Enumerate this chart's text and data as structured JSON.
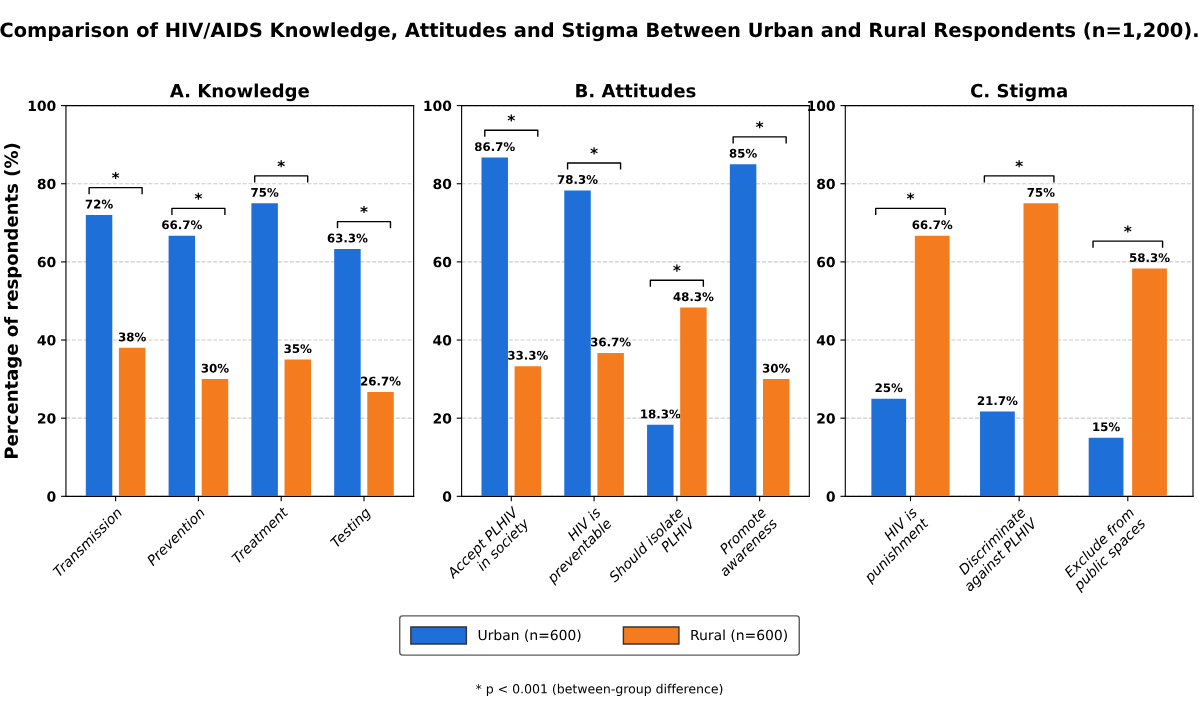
{
  "chart_data": [
    {
      "type": "bar",
      "title": "A. Knowledge",
      "ylabel": "Percentage of respondents (%)",
      "categories": [
        "Transmission",
        "Prevention",
        "Treatment",
        "Testing"
      ],
      "series": [
        {
          "name": "Urban (n=600)",
          "color": "#1f6fd8",
          "values": [
            72,
            66.7,
            75,
            63.3
          ]
        },
        {
          "name": "Rural (n=600)",
          "color": "#f57c1e",
          "values": [
            38,
            30,
            35,
            26.7
          ]
        }
      ],
      "value_labels": [
        [
          "72%",
          "66.7%",
          "75%",
          "63.3%"
        ],
        [
          "38%",
          "30%",
          "35%",
          "26.7%"
        ]
      ],
      "ylim": [
        0,
        100
      ],
      "yticks": [
        0,
        20,
        40,
        60,
        80,
        100
      ],
      "grid": "y",
      "legend": "bottom",
      "annotations": [
        "Comparison of HIV/AIDS Knowledge, Attitudes and Stigma Between Urban and Rural Respondents (n=1,200).",
        "*",
        "*",
        "*",
        "*"
      ]
    },
    {
      "type": "bar",
      "title": "B. Attitudes",
      "categories": [
        "Accept PLHIV\nin society",
        "HIV is\npreventable",
        "Should isolate\nPLHIV",
        "Promote\nawareness"
      ],
      "series": [
        {
          "color": "#1f6fd8",
          "values": [
            86.7,
            78.3,
            18.3,
            85
          ]
        },
        {
          "color": "#f57c1e",
          "values": [
            33.3,
            36.7,
            48.3,
            30
          ]
        }
      ],
      "value_labels": [
        [
          "86.7%",
          "78.3%",
          "18.3%",
          "85%"
        ],
        [
          "33.3%",
          "36.7%",
          "48.3%",
          "30%"
        ]
      ],
      "ylim": [
        0,
        100
      ],
      "yticks": [
        0,
        20,
        40,
        60,
        80,
        100
      ],
      "grid": "y",
      "annotations": [
        "*",
        "*",
        "*",
        "*"
      ]
    },
    {
      "type": "bar",
      "title": "C. Stigma",
      "categories": [
        "HIV is\npunishment",
        "Discriminate\nagainst PLHIV",
        "Exclude from\npublic spaces"
      ],
      "series": [
        {
          "color": "#1f6fd8",
          "values": [
            25,
            21.7,
            15
          ]
        },
        {
          "color": "#f57c1e",
          "values": [
            66.7,
            75,
            58.3
          ]
        }
      ],
      "value_labels": [
        [
          "25%",
          "21.7%",
          "15%"
        ],
        [
          "66.7%",
          "75%",
          "58.3%"
        ]
      ],
      "ylim": [
        0,
        100
      ],
      "yticks": [
        0,
        20,
        40,
        60,
        80,
        100
      ],
      "grid": "y",
      "annotations": [
        "*",
        "*",
        "*",
        "* p < 0.001 (between-group difference)"
      ]
    }
  ]
}
